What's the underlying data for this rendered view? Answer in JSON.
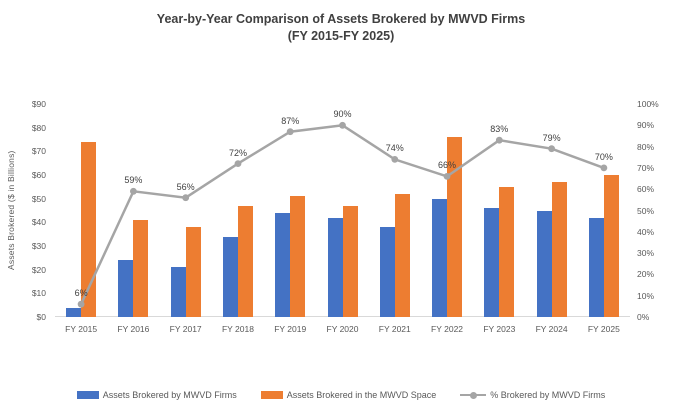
{
  "title": {
    "line1": "Year-by-Year Comparison of Assets Brokered by MWVD Firms",
    "line2": "(FY 2015-FY 2025)"
  },
  "chart_data": {
    "type": "combo",
    "title": "Year-by-Year Comparison of Assets Brokered by MWVD Firms (FY 2015-FY 2025)",
    "categories": [
      "FY 2015",
      "FY 2016",
      "FY 2017",
      "FY 2018",
      "FY 2019",
      "FY 2020",
      "FY 2021",
      "FY 2022",
      "FY 2023",
      "FY 2024",
      "FY 2025"
    ],
    "series": [
      {
        "name": "Assets Brokered by MWVD Firms",
        "type": "bar",
        "axis": "left",
        "color": "#4472C4",
        "values": [
          4,
          24,
          21,
          34,
          44,
          42,
          38,
          50,
          46,
          45,
          42
        ]
      },
      {
        "name": "Assets Brokered in the MWVD Space",
        "type": "bar",
        "axis": "left",
        "color": "#ED7D31",
        "values": [
          74,
          41,
          38,
          47,
          51,
          47,
          52,
          76,
          55,
          57,
          60
        ]
      },
      {
        "name": "% Brokered by MWVD Firms",
        "type": "line",
        "axis": "right",
        "color": "#A5A5A5",
        "values": [
          6,
          59,
          56,
          72,
          87,
          90,
          74,
          66,
          83,
          79,
          70
        ],
        "point_labels": [
          "6%",
          "59%",
          "56%",
          "72%",
          "87%",
          "90%",
          "74%",
          "66%",
          "83%",
          "79%",
          "70%"
        ]
      }
    ],
    "left_axis": {
      "title": "Assets Brokered ($ in Billions)",
      "min": 0,
      "max": 90,
      "step": 10,
      "ticks": [
        "$0",
        "$10",
        "$20",
        "$30",
        "$40",
        "$50",
        "$60",
        "$70",
        "$80",
        "$90"
      ]
    },
    "right_axis": {
      "min": 0,
      "max": 100,
      "step": 10,
      "ticks": [
        "0%",
        "10%",
        "20%",
        "30%",
        "40%",
        "50%",
        "60%",
        "70%",
        "80%",
        "90%",
        "100%"
      ]
    },
    "grid": false,
    "legend_position": "bottom",
    "colors": {
      "axis_line": "#D9D9D9",
      "axis_text": "#595959",
      "title_text": "#404040",
      "data_label_text": "#404040"
    }
  }
}
